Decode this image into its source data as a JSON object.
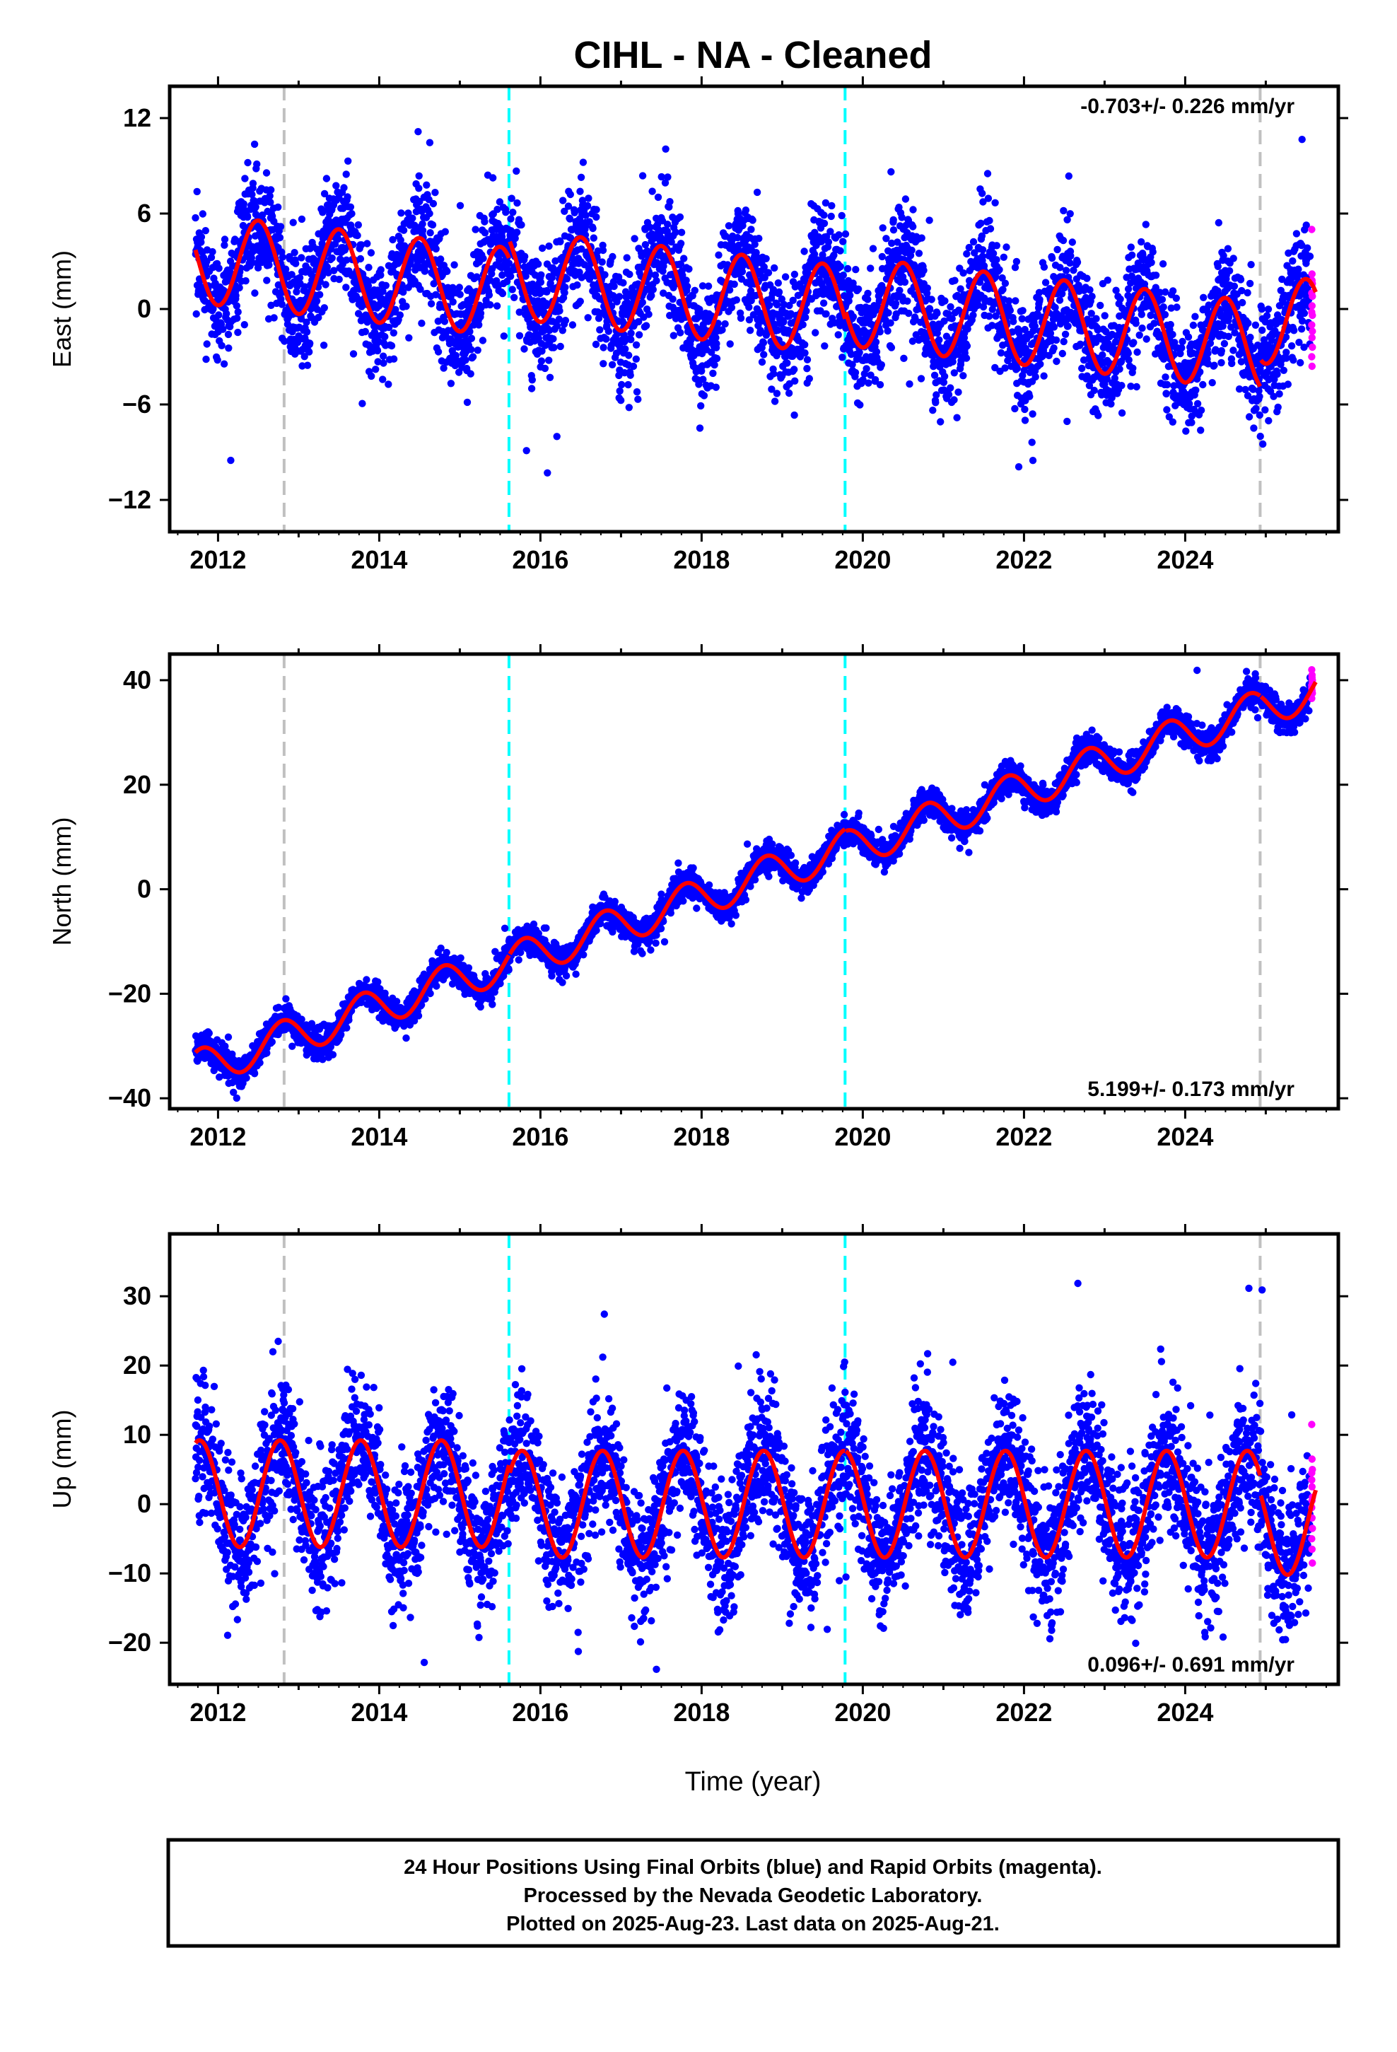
{
  "title": "CIHL  - NA - Cleaned",
  "x_axis_label": "Time (year)",
  "footer": {
    "line1": "24 Hour Positions Using Final Orbits (blue) and Rapid Orbits (magenta).",
    "line2": "Processed by the Nevada Geodetic Laboratory.",
    "line3": "Plotted on 2025-Aug-23. Last data on 2025-Aug-21."
  },
  "colors": {
    "final_orbits": "#0000ff",
    "rapid_orbits": "#ff00ff",
    "model_fit": "#ff0000",
    "equipment_change_line": "#c0c0c0",
    "earthquake_line": "#00ffff"
  },
  "chart_data": [
    {
      "type": "scatter",
      "panel": "east",
      "ylabel": "East (mm)",
      "rate_label": "-0.703+/- 0.226 mm/yr",
      "rate_position": "top-right",
      "xlim": [
        2011.4,
        2025.9
      ],
      "ylim": [
        -14,
        14
      ],
      "xticks": [
        "2012",
        "2014",
        "2016",
        "2018",
        "2020",
        "2022",
        "2024"
      ],
      "yticks": [
        "12",
        "6",
        "0",
        "-6",
        "-12"
      ],
      "vertical_lines": [
        {
          "kind": "equipment",
          "color": "#c0c0c0",
          "x": 2012.82
        },
        {
          "kind": "earthquake",
          "color": "#00ffff",
          "x": 2015.61
        },
        {
          "kind": "earthquake",
          "color": "#00ffff",
          "x": 2019.78
        },
        {
          "kind": "equipment",
          "color": "#c0c0c0",
          "x": 2024.93
        }
      ],
      "model": {
        "rate": -0.55,
        "annual_amplitude": 2.8,
        "annual_phase": 0.25,
        "offsets": [
          {
            "x": 2011.7,
            "value": 3.2
          },
          {
            "x": 2015.61,
            "value": 2.2
          },
          {
            "x": 2019.78,
            "value": 0.5
          },
          {
            "x": 2024.93,
            "value": -0.6
          }
        ]
      },
      "noise": 1.9,
      "rapid_points": [
        5.0,
        2.2,
        1.6,
        1.0,
        0.2,
        -0.4,
        -1.0,
        -1.8,
        -2.4,
        -3.0,
        -3.6,
        0.8,
        -0.2,
        1.8,
        -1.4
      ]
    },
    {
      "type": "scatter",
      "panel": "north",
      "ylabel": "North (mm)",
      "rate_label": "5.199+/- 0.173 mm/yr",
      "rate_position": "bottom-right",
      "xlim": [
        2011.4,
        2025.9
      ],
      "ylim": [
        -42,
        45
      ],
      "xticks": [
        "2012",
        "2014",
        "2016",
        "2018",
        "2020",
        "2022",
        "2024"
      ],
      "yticks": [
        "40",
        "20",
        "0",
        "-20",
        "-40"
      ],
      "vertical_lines": [
        {
          "kind": "equipment",
          "color": "#c0c0c0",
          "x": 2012.82
        },
        {
          "kind": "earthquake",
          "color": "#00ffff",
          "x": 2015.61
        },
        {
          "kind": "earthquake",
          "color": "#00ffff",
          "x": 2019.78
        },
        {
          "kind": "equipment",
          "color": "#c0c0c0",
          "x": 2024.93
        }
      ],
      "model": {
        "rate": 5.25,
        "annual_amplitude": 3.6,
        "annual_phase": 0.55,
        "offsets": [
          {
            "x": 2011.7,
            "value": -34.5
          },
          {
            "x": 2015.61,
            "value": -14.0
          },
          {
            "x": 2019.78,
            "value": 7.5
          },
          {
            "x": 2024.93,
            "value": 34.5
          }
        ]
      },
      "noise": 1.4,
      "rapid_points": [
        42.0,
        41.0,
        40.0,
        39.0,
        38.0,
        37.5,
        36.5,
        40.5,
        39.5,
        38.5
      ]
    },
    {
      "type": "scatter",
      "panel": "up",
      "ylabel": "Up (mm)",
      "rate_label": "0.096+/- 0.691 mm/yr",
      "rate_position": "bottom-right",
      "xlim": [
        2011.4,
        2025.9
      ],
      "ylim": [
        -26,
        39
      ],
      "xticks": [
        "2012",
        "2014",
        "2016",
        "2018",
        "2020",
        "2022",
        "2024"
      ],
      "yticks": [
        "30",
        "20",
        "10",
        "0",
        "-10",
        "-20"
      ],
      "vertical_lines": [
        {
          "kind": "equipment",
          "color": "#c0c0c0",
          "x": 2012.82
        },
        {
          "kind": "earthquake",
          "color": "#00ffff",
          "x": 2015.61
        },
        {
          "kind": "earthquake",
          "color": "#00ffff",
          "x": 2019.78
        },
        {
          "kind": "equipment",
          "color": "#c0c0c0",
          "x": 2024.93
        }
      ],
      "model": {
        "rate": 0.0,
        "annual_amplitude": 7.7,
        "annual_phase": 0.52,
        "offsets": [
          {
            "x": 2011.7,
            "value": 1.5
          },
          {
            "x": 2015.61,
            "value": 0.0
          },
          {
            "x": 2019.78,
            "value": 0.0
          },
          {
            "x": 2024.93,
            "value": -2.5
          }
        ]
      },
      "noise": 4.8,
      "rapid_points": [
        11.5,
        6.5,
        5.0,
        3.5,
        2.5,
        1.0,
        -0.5,
        -2.0,
        -3.5,
        -5.0,
        -6.5,
        -8.5,
        4.5,
        0.5
      ]
    }
  ]
}
